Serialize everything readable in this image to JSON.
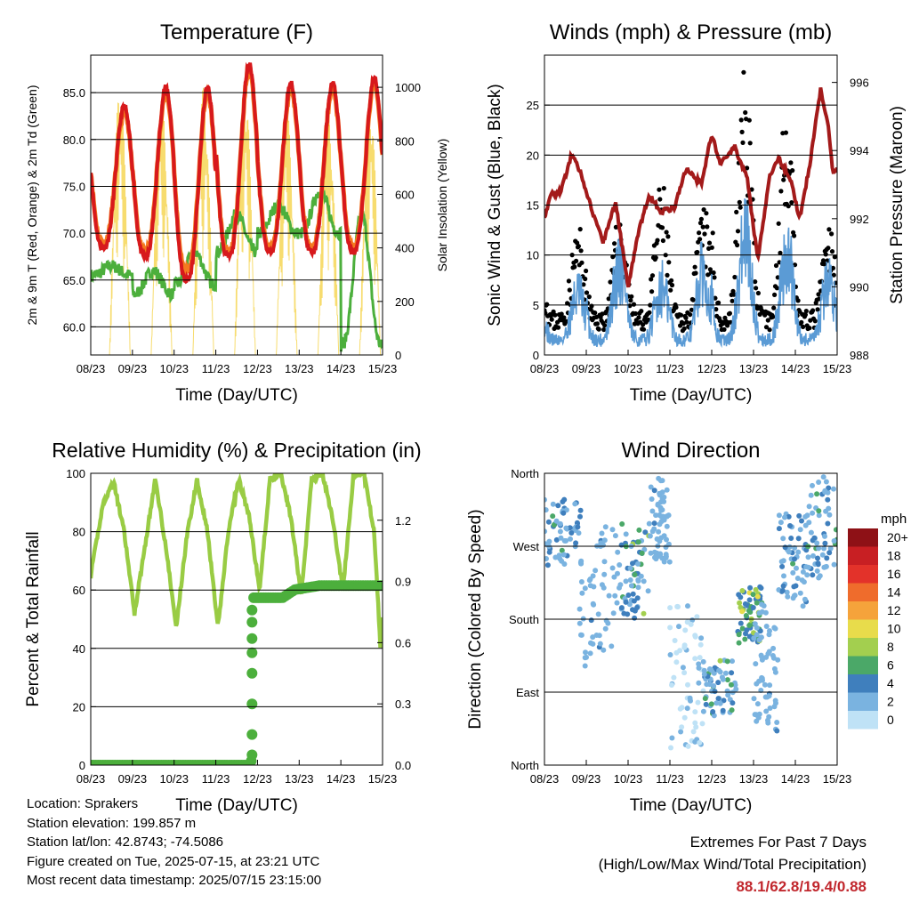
{
  "panels": {
    "temperature": {
      "title": "Temperature (F)",
      "ylabel_left": "2m & 9m T (Red, Orange) & 2m Td (Green)",
      "ylabel_right": "Solar Insolation (Yellow)",
      "xlabel": "Time (Day/UTC)"
    },
    "winds": {
      "title": "Winds (mph) & Pressure (mb)",
      "ylabel_left": "Sonic Wind & Gust (Blue, Black)",
      "ylabel_right": "Station Pressure (Maroon)",
      "xlabel": "Time (Day/UTC)"
    },
    "humidity": {
      "title": "Relative Humidity (%) & Precipitation (in)",
      "ylabel_left": "Percent & Total Rainfall",
      "xlabel": "Time (Day/UTC)"
    },
    "direction": {
      "title": "Wind Direction",
      "ylabel_left": "Direction (Colored By Speed)",
      "xlabel": "Time (Day/UTC)",
      "colorbar_title": "mph"
    }
  },
  "info": {
    "location": "Location: Sprakers",
    "elevation": "Station elevation: 199.857 m",
    "latlon": "Station lat/lon: 42.8743; -74.5086",
    "created": "Figure created on Tue, 2025-07-15, at 23:21 UTC",
    "recent": "Most recent data timestamp: 2025/07/15 23:15:00"
  },
  "extremes": {
    "title": "Extremes For Past 7 Days",
    "subtitle": "(High/Low/Max Wind/Total Precipitation)",
    "values": "88.1/62.8/19.4/0.88"
  },
  "colors": {
    "temp_2m": "#d7191c",
    "temp_9m": "#f47a20",
    "dewpoint": "#4caf3c",
    "solar": "#f7dc6f",
    "wind": "#5b9bd5",
    "gust": "#000000",
    "pressure": "#a31a1a",
    "rh": "#99cc44",
    "precip": "#4caf3c"
  },
  "chart_data": [
    {
      "type": "line",
      "title": "Temperature (F)",
      "xlabel": "Time (Day/UTC)",
      "x_ticks": [
        "08/23",
        "09/23",
        "10/23",
        "11/23",
        "12/23",
        "13/23",
        "14/23",
        "15/23"
      ],
      "xlim_days": [
        0,
        7
      ],
      "ylim": [
        57,
        89
      ],
      "y_ticks": [
        60.0,
        65.0,
        70.0,
        75.0,
        80.0,
        85.0
      ],
      "y2lim": [
        0,
        1120
      ],
      "y2_ticks": [
        0,
        200,
        400,
        600,
        800,
        1000
      ],
      "series": [
        {
          "role": "temp_2m",
          "daily_min": [
            68.5,
            67.5,
            65.0,
            67.5,
            68.0,
            68.0,
            68.0
          ],
          "daily_max": [
            83.5,
            85.5,
            85.5,
            88.0,
            86.0,
            86.0,
            86.5
          ]
        },
        {
          "role": "temp_9m",
          "daily_min": [
            69.0,
            68.0,
            66.0,
            68.0,
            68.5,
            68.5,
            68.5
          ],
          "daily_max": [
            83.0,
            85.0,
            85.0,
            87.5,
            85.5,
            85.5,
            86.0
          ]
        },
        {
          "role": "dewpoint",
          "daily_min": [
            65.5,
            63.5,
            64.5,
            68.0,
            70.0,
            70.0,
            58.0
          ],
          "daily_max": [
            66.5,
            66.0,
            68.0,
            72.0,
            73.0,
            74.5,
            72.0
          ]
        },
        {
          "role": "solar",
          "daily_peak": [
            1000,
            950,
            1000,
            1000,
            920,
            900,
            950
          ]
        }
      ]
    },
    {
      "type": "line",
      "title": "Winds (mph) & Pressure (mb)",
      "xlabel": "Time (Day/UTC)",
      "x_ticks": [
        "08/23",
        "09/23",
        "10/23",
        "11/23",
        "12/23",
        "13/23",
        "14/23",
        "15/23"
      ],
      "xlim_days": [
        0,
        7
      ],
      "ylim": [
        0,
        30
      ],
      "y_ticks": [
        0,
        5,
        10,
        15,
        20,
        25
      ],
      "y2lim": [
        988,
        996.8
      ],
      "y2_ticks": [
        988,
        990,
        992,
        994,
        996
      ],
      "series": [
        {
          "role": "pressure",
          "x_days": [
            0,
            0.15,
            0.4,
            0.65,
            0.85,
            1.1,
            1.4,
            1.7,
            2.0,
            2.25,
            2.5,
            2.8,
            3.1,
            3.4,
            3.75,
            4.0,
            4.2,
            4.55,
            4.85,
            5.1,
            5.4,
            5.6,
            5.9,
            6.1,
            6.35,
            6.6,
            6.8,
            6.9,
            7.0
          ],
          "values": [
            992.0,
            992.7,
            992.8,
            993.9,
            993.4,
            992.4,
            991.3,
            992.5,
            990.0,
            991.6,
            992.7,
            992.2,
            992.3,
            993.5,
            993.0,
            994.5,
            993.6,
            994.1,
            993.2,
            990.8,
            993.3,
            993.8,
            993.1,
            992.0,
            993.6,
            995.8,
            994.6,
            993.3,
            993.5
          ]
        },
        {
          "role": "wind",
          "daily_peak": [
            8,
            12,
            9,
            11,
            15,
            13,
            10
          ]
        },
        {
          "role": "gust",
          "daily_peak": [
            12,
            13,
            16,
            14,
            28,
            25,
            12
          ]
        }
      ]
    },
    {
      "type": "line",
      "title": "Relative Humidity (%) & Precipitation (in)",
      "xlabel": "Time (Day/UTC)",
      "x_ticks": [
        "08/23",
        "09/23",
        "10/23",
        "11/23",
        "12/23",
        "13/23",
        "14/23",
        "15/23"
      ],
      "xlim_days": [
        0,
        7
      ],
      "ylim": [
        0,
        100
      ],
      "y_ticks": [
        0,
        20,
        40,
        60,
        80,
        100
      ],
      "y2lim": [
        0,
        1.43
      ],
      "y2_ticks": [
        "0.0",
        "0.3",
        "0.6",
        "0.9",
        "1.2"
      ],
      "series": [
        {
          "role": "rh",
          "x_days": [
            0,
            0.3,
            0.55,
            0.8,
            1.05,
            1.3,
            1.55,
            1.8,
            2.05,
            2.3,
            2.55,
            2.8,
            3.05,
            3.3,
            3.55,
            3.8,
            4.05,
            4.3,
            4.55,
            4.8,
            5.05,
            5.3,
            5.55,
            5.8,
            6.05,
            6.3,
            6.55,
            6.8,
            6.95,
            7.0
          ],
          "values": [
            65,
            90,
            97,
            80,
            52,
            75,
            98,
            75,
            47,
            78,
            98,
            80,
            47,
            80,
            98,
            85,
            60,
            98,
            100,
            85,
            58,
            98,
            100,
            85,
            60,
            99,
            100,
            80,
            40,
            50
          ]
        },
        {
          "role": "precip",
          "x_days": [
            0,
            1,
            2,
            3,
            3.8,
            3.85,
            3.9,
            4.1,
            4.6,
            4.9,
            5.5,
            6.0,
            6.5,
            7.0
          ],
          "values": [
            0.0,
            0.0,
            0.0,
            0.0,
            0.0,
            0.02,
            0.82,
            0.82,
            0.82,
            0.86,
            0.88,
            0.88,
            0.88,
            0.88
          ]
        }
      ]
    },
    {
      "type": "scatter",
      "title": "Wind Direction",
      "xlabel": "Time (Day/UTC)",
      "x_ticks": [
        "08/23",
        "09/23",
        "10/23",
        "11/23",
        "12/23",
        "13/23",
        "14/23",
        "15/23"
      ],
      "xlim_days": [
        0,
        7
      ],
      "ylim_deg": [
        0,
        360
      ],
      "y_ticks": [
        "North",
        "East",
        "South",
        "West",
        "North"
      ],
      "colorbar_ticks": [
        "20+",
        "18",
        "16",
        "14",
        "12",
        "10",
        "8",
        "6",
        "4",
        "2",
        "0"
      ],
      "colorbar_colors": [
        "#8e1116",
        "#c81f23",
        "#e3322a",
        "#ef6c2c",
        "#f5a33b",
        "#e8dc4b",
        "#a3cf4f",
        "#4ba868",
        "#3f7fbd",
        "#7ab3e0",
        "#bfe2f6"
      ],
      "clusters": [
        {
          "x_days": [
            0.0,
            0.9
          ],
          "dir_deg": [
            240,
            330
          ],
          "speed": [
            2,
            6
          ]
        },
        {
          "x_days": [
            0.8,
            1.8
          ],
          "dir_deg": [
            120,
            300
          ],
          "speed": [
            1,
            4
          ]
        },
        {
          "x_days": [
            1.8,
            2.5
          ],
          "dir_deg": [
            180,
            300
          ],
          "speed": [
            2,
            10
          ]
        },
        {
          "x_days": [
            2.5,
            3.0
          ],
          "dir_deg": [
            250,
            360
          ],
          "speed": [
            1,
            4
          ]
        },
        {
          "x_days": [
            3.0,
            3.8
          ],
          "dir_deg": [
            20,
            200
          ],
          "speed": [
            0,
            4
          ]
        },
        {
          "x_days": [
            3.8,
            4.6
          ],
          "dir_deg": [
            60,
            130
          ],
          "speed": [
            2,
            8
          ]
        },
        {
          "x_days": [
            4.6,
            5.2
          ],
          "dir_deg": [
            150,
            220
          ],
          "speed": [
            4,
            12
          ]
        },
        {
          "x_days": [
            5.0,
            5.6
          ],
          "dir_deg": [
            40,
            200
          ],
          "speed": [
            1,
            4
          ]
        },
        {
          "x_days": [
            5.6,
            6.3
          ],
          "dir_deg": [
            190,
            310
          ],
          "speed": [
            2,
            6
          ]
        },
        {
          "x_days": [
            6.3,
            7.0
          ],
          "dir_deg": [
            230,
            360
          ],
          "speed": [
            2,
            8
          ]
        }
      ]
    }
  ]
}
